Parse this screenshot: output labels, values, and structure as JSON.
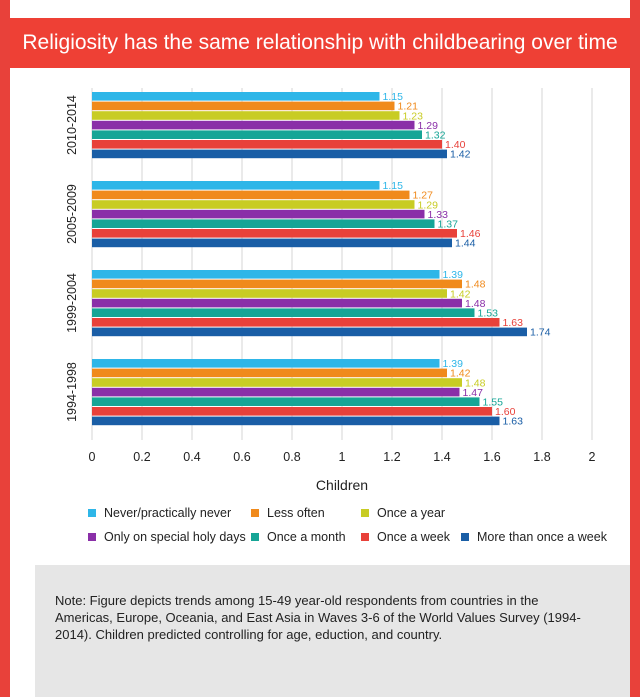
{
  "title": "Religiosity has the same relationship with childbearing over time",
  "note": "Note: Figure depicts trends among  15-49 year-old respondents from countries in the Americas, Europe, Oceania, and East Asia in Waves  3-6 of the World Values Survey (1994-2014). Children predicted controlling for age, eduction, and country.",
  "colors": {
    "accent": "#ee4035",
    "series": [
      "#2eb6e8",
      "#f08a1c",
      "#c8cc24",
      "#8a2fa8",
      "#16a596",
      "#e8413a",
      "#1a5ea6"
    ]
  },
  "chart_data": {
    "type": "bar",
    "orientation": "horizontal",
    "xlabel": "Children",
    "xlim": [
      0,
      2
    ],
    "xticks": [
      "0",
      "0.2",
      "0.4",
      "0.6",
      "0.8",
      "1",
      "1.2",
      "1.4",
      "1.6",
      "1.8",
      "2"
    ],
    "grid": true,
    "legend_position": "bottom",
    "categories": [
      "2010-2014",
      "2005-2009",
      "1999-2004",
      "1994-1998"
    ],
    "series": [
      {
        "name": "Never/practically never",
        "values": [
          1.15,
          1.15,
          1.39,
          1.39
        ],
        "labels": [
          "1.15",
          "1.15",
          "1.39",
          "1.39"
        ]
      },
      {
        "name": "Less often",
        "values": [
          1.21,
          1.27,
          1.48,
          1.42
        ],
        "labels": [
          "1.21",
          "1.27",
          "1.48",
          "1.42"
        ]
      },
      {
        "name": "Once a year",
        "values": [
          1.23,
          1.29,
          1.42,
          1.48
        ],
        "labels": [
          "1.23",
          "1.29",
          "1.42",
          "1.48"
        ]
      },
      {
        "name": "Only on special holy days",
        "values": [
          1.29,
          1.33,
          1.48,
          1.47
        ],
        "labels": [
          "1.29",
          "1.33",
          "1.48",
          "1.47"
        ]
      },
      {
        "name": "Once a month",
        "values": [
          1.32,
          1.37,
          1.53,
          1.55
        ],
        "labels": [
          "1.32",
          "1.37",
          "1.53",
          "1.55"
        ]
      },
      {
        "name": "Once a week",
        "values": [
          1.4,
          1.46,
          1.63,
          1.6
        ],
        "labels": [
          "1.40",
          "1.46",
          "1.63",
          "1.60"
        ]
      },
      {
        "name": "More than once a week",
        "values": [
          1.42,
          1.44,
          1.74,
          1.63
        ],
        "labels": [
          "1.42",
          "1.44",
          "1.74",
          "1.63"
        ]
      }
    ]
  }
}
